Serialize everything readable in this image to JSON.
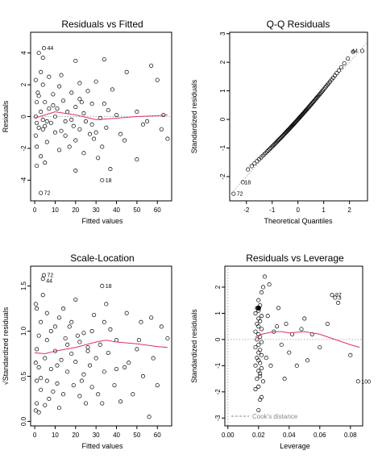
{
  "chart_data": [
    {
      "type": "scatter",
      "title": "Residuals vs Fitted",
      "xlabel": "Fitted values",
      "ylabel": "Residuals",
      "xlim": [
        -2,
        67
      ],
      "ylim": [
        -5.3,
        5.3
      ],
      "xticks": [
        0,
        10,
        20,
        30,
        40,
        50,
        60
      ],
      "yticks": [
        -4,
        -2,
        0,
        2,
        4
      ],
      "ref_line_y": 0,
      "points": [
        [
          3,
          -4.8
        ],
        [
          33,
          -4
        ],
        [
          20,
          -3.4
        ],
        [
          37,
          -3.3
        ],
        [
          1,
          -3.1
        ],
        [
          50,
          -2.7
        ],
        [
          3,
          -2.5
        ],
        [
          24,
          -2.3
        ],
        [
          12,
          -2.1
        ],
        [
          1,
          -1.9
        ],
        [
          33,
          -1.9
        ],
        [
          6,
          -1.6
        ],
        [
          20,
          -1.5
        ],
        [
          29,
          -1.4
        ],
        [
          15,
          -1.2
        ],
        [
          42,
          -1.1
        ],
        [
          10,
          -1.0
        ],
        [
          30,
          -1.0
        ],
        [
          13,
          -0.9
        ],
        [
          4,
          -0.8
        ],
        [
          22,
          -0.8
        ],
        [
          2,
          -0.7
        ],
        [
          35,
          -0.7
        ],
        [
          5,
          -0.6
        ],
        [
          19,
          -0.6
        ],
        [
          28,
          -0.5
        ],
        [
          1,
          -0.4
        ],
        [
          8,
          -0.4
        ],
        [
          15,
          -0.3
        ],
        [
          25,
          -0.3
        ],
        [
          55,
          -0.3
        ],
        [
          4,
          -0.2
        ],
        [
          18,
          -0.2
        ],
        [
          32,
          -0.1
        ],
        [
          0.5,
          0
        ],
        [
          10,
          0
        ],
        [
          40,
          0.1
        ],
        [
          24,
          0.2
        ],
        [
          3,
          0.3
        ],
        [
          16,
          0.3
        ],
        [
          50,
          0.3
        ],
        [
          7,
          0.5
        ],
        [
          11,
          0.5
        ],
        [
          20,
          0.6
        ],
        [
          28,
          0.8
        ],
        [
          34,
          0.8
        ],
        [
          1,
          0.9
        ],
        [
          5,
          0.9
        ],
        [
          14,
          1.0
        ],
        [
          22,
          1.1
        ],
        [
          2,
          1.3
        ],
        [
          9,
          1.4
        ],
        [
          18,
          1.5
        ],
        [
          26,
          1.6
        ],
        [
          38,
          1.7
        ],
        [
          12,
          1.9
        ],
        [
          4,
          2.0
        ],
        [
          22,
          2.1
        ],
        [
          30,
          2.2
        ],
        [
          7,
          2.5
        ],
        [
          3,
          2.8
        ],
        [
          45,
          2.8
        ],
        [
          34,
          3.6
        ],
        [
          20,
          3.5
        ],
        [
          57,
          3.2
        ],
        [
          4,
          3.7
        ],
        [
          2,
          4.0
        ],
        [
          4.5,
          4.3
        ],
        [
          62,
          -0.8
        ],
        [
          65,
          -1.4
        ],
        [
          63,
          0.1
        ],
        [
          0.5,
          2.3
        ],
        [
          1.5,
          1.5
        ],
        [
          0.5,
          -1.2
        ],
        [
          6,
          -0.3
        ],
        [
          9,
          0.7
        ],
        [
          17,
          -1.9
        ],
        [
          23,
          0.9
        ],
        [
          27,
          -1.1
        ],
        [
          36,
          0.4
        ],
        [
          44,
          -1.5
        ],
        [
          53,
          -0.5
        ],
        [
          60,
          2.3
        ],
        [
          5,
          -2.9
        ],
        [
          13,
          2.6
        ],
        [
          31,
          -2.6
        ]
      ],
      "point_labels": [
        {
          "text": "44",
          "x": 4.5,
          "y": 4.3
        },
        {
          "text": "72",
          "x": 3,
          "y": -4.8
        },
        {
          "text": "18",
          "x": 33,
          "y": -4
        }
      ],
      "smooth_line": {
        "color": "#e0315b",
        "x": [
          0,
          5,
          10,
          20,
          30,
          40,
          50,
          60,
          65
        ],
        "y": [
          -0.1,
          0.1,
          0.3,
          0.1,
          -0.2,
          -0.1,
          0.0,
          0.05,
          0.1
        ]
      }
    },
    {
      "type": "scatter",
      "title": "Q-Q Residuals",
      "xlabel": "Theoretical Quantiles",
      "ylabel": "Standardized residuals",
      "xlim": [
        -2.65,
        2.7
      ],
      "ylim": [
        -2.85,
        3.05
      ],
      "xticks": [
        -2,
        -1,
        0,
        1,
        2
      ],
      "yticks": [
        -2,
        -1,
        0,
        1,
        2,
        3
      ],
      "ref_line": {
        "slope": 1,
        "intercept": 0,
        "style": "dotted"
      },
      "point_labels": [
        {
          "text": "72",
          "x": -2.5,
          "y": -2.6
        },
        {
          "text": "18",
          "x": -2.2,
          "y": -2.2
        },
        {
          "text": "44",
          "x": 2.45,
          "y": 2.4
        }
      ]
    },
    {
      "type": "scatter",
      "title": "Scale-Location",
      "xlabel": "Fitted values",
      "ylabel": "√Standardized residuals",
      "xlim": [
        -2,
        67
      ],
      "ylim": [
        -0.05,
        1.72
      ],
      "xticks": [
        0,
        10,
        20,
        30,
        40,
        50,
        60
      ],
      "yticks": [
        0.0,
        0.5,
        1.0,
        1.5
      ],
      "ytick_labels": [
        "0.0",
        "0.5",
        "1.0",
        "1.5"
      ],
      "points": [
        [
          4.5,
          1.62
        ],
        [
          4,
          1.58
        ],
        [
          33,
          1.5
        ],
        [
          0.5,
          1.3
        ],
        [
          1,
          1.25
        ],
        [
          35,
          1.3
        ],
        [
          20,
          1.35
        ],
        [
          45,
          1.2
        ],
        [
          57,
          1.15
        ],
        [
          62,
          1.05
        ],
        [
          3,
          1.1
        ],
        [
          8,
          1.0
        ],
        [
          12,
          1.15
        ],
        [
          17,
          1.05
        ],
        [
          24,
          0.98
        ],
        [
          28,
          1.0
        ],
        [
          2,
          0.95
        ],
        [
          6,
          0.9
        ],
        [
          15,
          0.92
        ],
        [
          22,
          0.88
        ],
        [
          32,
          0.85
        ],
        [
          40,
          0.9
        ],
        [
          50,
          0.8
        ],
        [
          1,
          0.8
        ],
        [
          10,
          0.78
        ],
        [
          18,
          0.75
        ],
        [
          26,
          0.82
        ],
        [
          36,
          0.76
        ],
        [
          5,
          0.7
        ],
        [
          13,
          0.68
        ],
        [
          20,
          0.66
        ],
        [
          30,
          0.7
        ],
        [
          44,
          0.6
        ],
        [
          2,
          0.6
        ],
        [
          8,
          0.58
        ],
        [
          16,
          0.55
        ],
        [
          24,
          0.52
        ],
        [
          34,
          0.55
        ],
        [
          53,
          0.5
        ],
        [
          1,
          0.45
        ],
        [
          6,
          0.45
        ],
        [
          11,
          0.42
        ],
        [
          19,
          0.4
        ],
        [
          28,
          0.38
        ],
        [
          39,
          0.4
        ],
        [
          60,
          0.4
        ],
        [
          3,
          0.35
        ],
        [
          9,
          0.33
        ],
        [
          14,
          0.3
        ],
        [
          22,
          0.28
        ],
        [
          31,
          0.3
        ],
        [
          48,
          0.3
        ],
        [
          1,
          0.2
        ],
        [
          5,
          0.18
        ],
        [
          12,
          0.15
        ],
        [
          25,
          0.2
        ],
        [
          42,
          0.22
        ],
        [
          56,
          0.05
        ],
        [
          0.5,
          0.12
        ],
        [
          2,
          0.1
        ],
        [
          7,
          0.25
        ],
        [
          16,
          0.85
        ],
        [
          21,
          0.95
        ],
        [
          27,
          0.62
        ],
        [
          37,
          1.02
        ],
        [
          52,
          1.1
        ],
        [
          65,
          0.92
        ],
        [
          4,
          1.4
        ],
        [
          14,
          1.25
        ],
        [
          29,
          1.18
        ],
        [
          46,
          0.65
        ],
        [
          58,
          0.7
        ],
        [
          10,
          1.05
        ],
        [
          23,
          0.45
        ],
        [
          34,
          1.1
        ],
        [
          0.5,
          0.65
        ],
        [
          3,
          0.48
        ],
        [
          18,
          1.1
        ],
        [
          26,
          0.78
        ],
        [
          40,
          0.58
        ],
        [
          6,
          1.2
        ],
        [
          11,
          0.62
        ],
        [
          33,
          0.2
        ],
        [
          51,
          0.9
        ]
      ],
      "point_labels": [
        {
          "text": "72",
          "x": 4.5,
          "y": 1.62
        },
        {
          "text": "44",
          "x": 4,
          "y": 1.56
        },
        {
          "text": "18",
          "x": 33,
          "y": 1.5
        }
      ],
      "smooth_line": {
        "color": "#e0315b",
        "x": [
          0,
          5,
          10,
          20,
          30,
          35,
          40,
          50,
          60,
          65
        ],
        "y": [
          0.76,
          0.75,
          0.78,
          0.82,
          0.88,
          0.9,
          0.88,
          0.86,
          0.83,
          0.82
        ]
      }
    },
    {
      "type": "scatter",
      "title": "Residuals vs Leverage",
      "xlabel": "Leverage",
      "ylabel": "Standardized residuals",
      "xlim": [
        -0.002,
        0.088
      ],
      "ylim": [
        -3.3,
        2.8
      ],
      "xticks": [
        0.0,
        0.02,
        0.04,
        0.06,
        0.08
      ],
      "xtick_labels": [
        "0.00",
        "0.02",
        "0.04",
        "0.06",
        "0.08"
      ],
      "yticks": [
        -3,
        -2,
        -1,
        0,
        1,
        2
      ],
      "ref_line_y": 0,
      "ref_line_x": 0,
      "points": [
        [
          0.02,
          -2.7
        ],
        [
          0.021,
          -2.3
        ],
        [
          0.022,
          -2.2
        ],
        [
          0.018,
          -1.9
        ],
        [
          0.02,
          -1.8
        ],
        [
          0.023,
          -1.6
        ],
        [
          0.019,
          -1.5
        ],
        [
          0.021,
          -1.3
        ],
        [
          0.02,
          -1.2
        ],
        [
          0.022,
          -1.1
        ],
        [
          0.018,
          -1.0
        ],
        [
          0.021,
          -0.9
        ],
        [
          0.02,
          -0.8
        ],
        [
          0.019,
          -0.7
        ],
        [
          0.022,
          -0.6
        ],
        [
          0.02,
          -0.5
        ],
        [
          0.021,
          -0.4
        ],
        [
          0.018,
          -0.3
        ],
        [
          0.02,
          -0.2
        ],
        [
          0.022,
          -0.1
        ],
        [
          0.019,
          0
        ],
        [
          0.021,
          0.1
        ],
        [
          0.02,
          0.2
        ],
        [
          0.018,
          0.3
        ],
        [
          0.022,
          0.4
        ],
        [
          0.02,
          0.5
        ],
        [
          0.019,
          0.6
        ],
        [
          0.021,
          0.7
        ],
        [
          0.02,
          0.8
        ],
        [
          0.022,
          0.9
        ],
        [
          0.018,
          1.0
        ],
        [
          0.02,
          1.1
        ],
        [
          0.021,
          1.3
        ],
        [
          0.02,
          1.5
        ],
        [
          0.022,
          1.8
        ],
        [
          0.023,
          2.0
        ],
        [
          0.024,
          2.4
        ],
        [
          0.019,
          1.2
        ],
        [
          0.021,
          -1.4
        ],
        [
          0.03,
          0.3
        ],
        [
          0.032,
          0.5
        ],
        [
          0.035,
          -0.2
        ],
        [
          0.038,
          0.6
        ],
        [
          0.04,
          -0.5
        ],
        [
          0.042,
          0.2
        ],
        [
          0.045,
          -1.0
        ],
        [
          0.048,
          0.4
        ],
        [
          0.05,
          0.8
        ],
        [
          0.055,
          0.2
        ],
        [
          0.06,
          -0.3
        ],
        [
          0.068,
          1.7
        ],
        [
          0.07,
          1.6
        ],
        [
          0.072,
          1.4
        ],
        [
          0.08,
          -0.6
        ],
        [
          0.085,
          -1.6
        ],
        [
          0.028,
          -1.0
        ],
        [
          0.033,
          1.2
        ],
        [
          0.037,
          -1.5
        ],
        [
          0.052,
          -0.8
        ],
        [
          0.065,
          0.6
        ],
        [
          0.027,
          2.1
        ],
        [
          0.025,
          -0.7
        ],
        [
          0.026,
          0.9
        ]
      ],
      "highlight_point": {
        "x": 0.02,
        "y": 1.2
      },
      "point_labels": [
        {
          "text": "97",
          "x": 0.068,
          "y": 1.7
        },
        {
          "text": "3",
          "x": 0.07,
          "y": 1.6
        },
        {
          "text": "100",
          "x": 0.085,
          "y": -1.6
        }
      ],
      "smooth_line": {
        "color": "#e0315b",
        "x": [
          0.018,
          0.022,
          0.026,
          0.03,
          0.035,
          0.04,
          0.05,
          0.06,
          0.07,
          0.08,
          0.086
        ],
        "y": [
          0.1,
          0.2,
          0.25,
          0.3,
          0.3,
          0.25,
          0.3,
          0.2,
          0.0,
          -0.2,
          -0.3
        ]
      },
      "legend": {
        "text": "Cook's distance",
        "position": "bottom-left",
        "style": "dashed",
        "color": "#888888"
      }
    }
  ]
}
